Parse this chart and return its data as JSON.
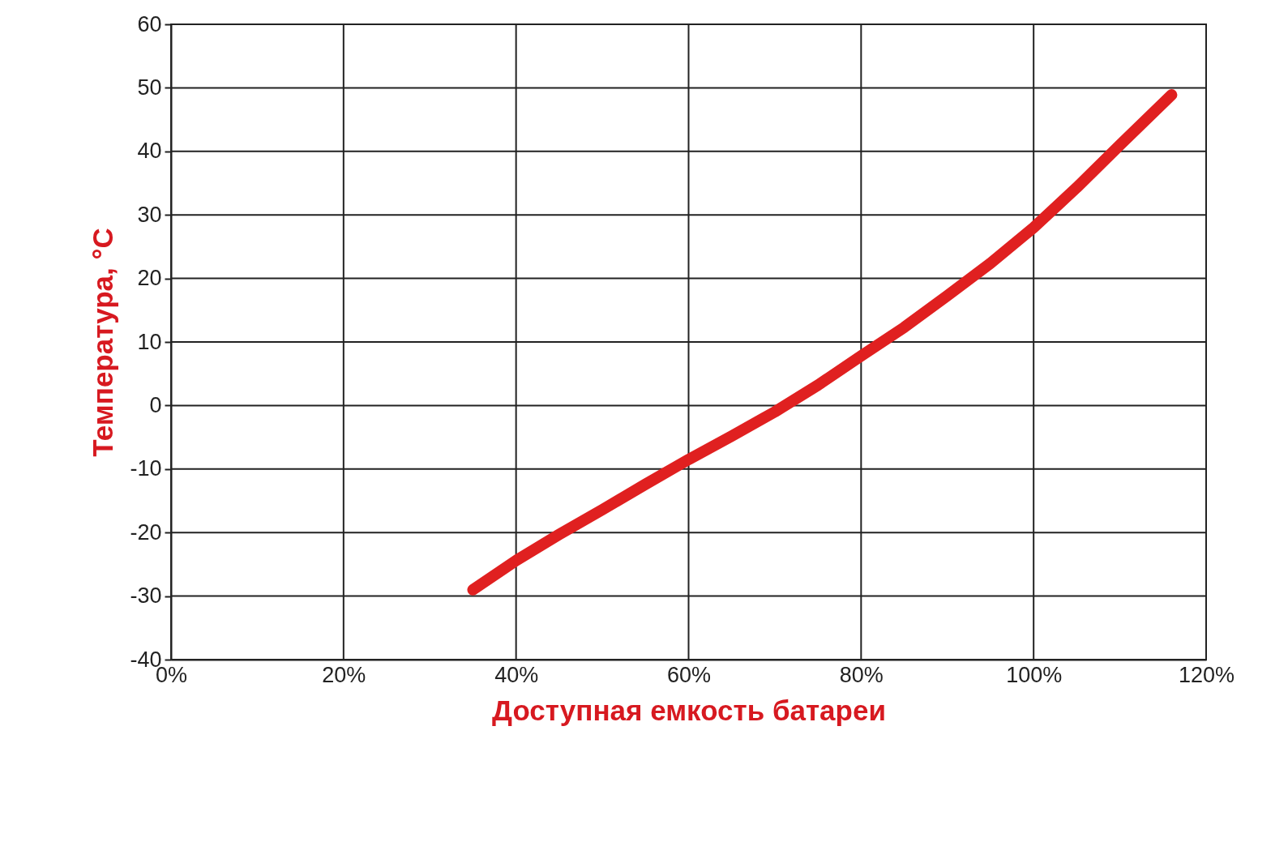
{
  "chart_data": {
    "type": "line",
    "xlabel": "Доступная емкость батареи",
    "ylabel": "Температура, °C",
    "x": [
      35,
      40,
      45,
      50,
      55,
      60,
      65,
      70,
      75,
      80,
      85,
      90,
      95,
      100,
      105,
      110,
      116
    ],
    "series": [
      {
        "color": "#e02020",
        "values": [
          -29,
          -24.4,
          -20.3,
          -16.4,
          -12.4,
          -8.5,
          -4.8,
          -1,
          3.2,
          7.8,
          12.3,
          17.3,
          22.4,
          28,
          34.3,
          41,
          48.9
        ]
      }
    ],
    "xlim": [
      0,
      120
    ],
    "xticks": [
      {
        "value": 0,
        "label": "0%"
      },
      {
        "value": 20,
        "label": "20%"
      },
      {
        "value": 40,
        "label": "40%"
      },
      {
        "value": 60,
        "label": "60%"
      },
      {
        "value": 80,
        "label": "80%"
      },
      {
        "value": 100,
        "label": "100%"
      },
      {
        "value": 120,
        "label": "120%"
      }
    ],
    "ylim": [
      -40,
      60
    ],
    "yticks": [
      -40,
      -30,
      -20,
      -10,
      0,
      10,
      20,
      30,
      40,
      50,
      60
    ],
    "grid": true,
    "line_style": "solid"
  }
}
